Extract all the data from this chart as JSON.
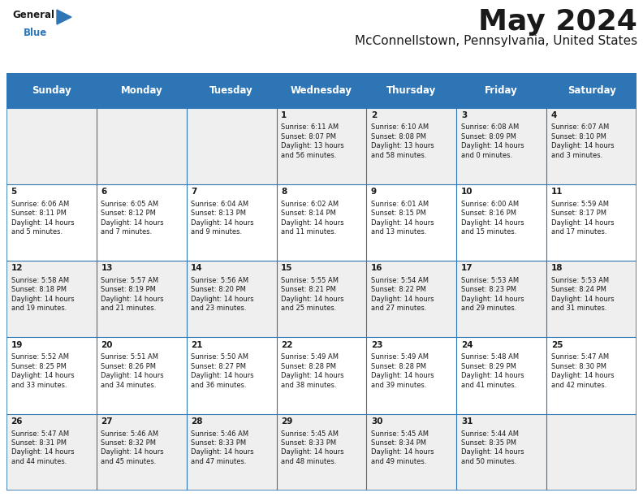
{
  "title": "May 2024",
  "subtitle": "McConnellstown, Pennsylvania, United States",
  "header_bg": "#2E75B6",
  "header_text_color": "#FFFFFF",
  "cell_bg_light": "#EFEFEF",
  "cell_bg_white": "#FFFFFF",
  "days_of_week": [
    "Sunday",
    "Monday",
    "Tuesday",
    "Wednesday",
    "Thursday",
    "Friday",
    "Saturday"
  ],
  "calendar": [
    [
      "",
      "",
      "",
      "1\nSunrise: 6:11 AM\nSunset: 8:07 PM\nDaylight: 13 hours\nand 56 minutes.",
      "2\nSunrise: 6:10 AM\nSunset: 8:08 PM\nDaylight: 13 hours\nand 58 minutes.",
      "3\nSunrise: 6:08 AM\nSunset: 8:09 PM\nDaylight: 14 hours\nand 0 minutes.",
      "4\nSunrise: 6:07 AM\nSunset: 8:10 PM\nDaylight: 14 hours\nand 3 minutes."
    ],
    [
      "5\nSunrise: 6:06 AM\nSunset: 8:11 PM\nDaylight: 14 hours\nand 5 minutes.",
      "6\nSunrise: 6:05 AM\nSunset: 8:12 PM\nDaylight: 14 hours\nand 7 minutes.",
      "7\nSunrise: 6:04 AM\nSunset: 8:13 PM\nDaylight: 14 hours\nand 9 minutes.",
      "8\nSunrise: 6:02 AM\nSunset: 8:14 PM\nDaylight: 14 hours\nand 11 minutes.",
      "9\nSunrise: 6:01 AM\nSunset: 8:15 PM\nDaylight: 14 hours\nand 13 minutes.",
      "10\nSunrise: 6:00 AM\nSunset: 8:16 PM\nDaylight: 14 hours\nand 15 minutes.",
      "11\nSunrise: 5:59 AM\nSunset: 8:17 PM\nDaylight: 14 hours\nand 17 minutes."
    ],
    [
      "12\nSunrise: 5:58 AM\nSunset: 8:18 PM\nDaylight: 14 hours\nand 19 minutes.",
      "13\nSunrise: 5:57 AM\nSunset: 8:19 PM\nDaylight: 14 hours\nand 21 minutes.",
      "14\nSunrise: 5:56 AM\nSunset: 8:20 PM\nDaylight: 14 hours\nand 23 minutes.",
      "15\nSunrise: 5:55 AM\nSunset: 8:21 PM\nDaylight: 14 hours\nand 25 minutes.",
      "16\nSunrise: 5:54 AM\nSunset: 8:22 PM\nDaylight: 14 hours\nand 27 minutes.",
      "17\nSunrise: 5:53 AM\nSunset: 8:23 PM\nDaylight: 14 hours\nand 29 minutes.",
      "18\nSunrise: 5:53 AM\nSunset: 8:24 PM\nDaylight: 14 hours\nand 31 minutes."
    ],
    [
      "19\nSunrise: 5:52 AM\nSunset: 8:25 PM\nDaylight: 14 hours\nand 33 minutes.",
      "20\nSunrise: 5:51 AM\nSunset: 8:26 PM\nDaylight: 14 hours\nand 34 minutes.",
      "21\nSunrise: 5:50 AM\nSunset: 8:27 PM\nDaylight: 14 hours\nand 36 minutes.",
      "22\nSunrise: 5:49 AM\nSunset: 8:28 PM\nDaylight: 14 hours\nand 38 minutes.",
      "23\nSunrise: 5:49 AM\nSunset: 8:28 PM\nDaylight: 14 hours\nand 39 minutes.",
      "24\nSunrise: 5:48 AM\nSunset: 8:29 PM\nDaylight: 14 hours\nand 41 minutes.",
      "25\nSunrise: 5:47 AM\nSunset: 8:30 PM\nDaylight: 14 hours\nand 42 minutes."
    ],
    [
      "26\nSunrise: 5:47 AM\nSunset: 8:31 PM\nDaylight: 14 hours\nand 44 minutes.",
      "27\nSunrise: 5:46 AM\nSunset: 8:32 PM\nDaylight: 14 hours\nand 45 minutes.",
      "28\nSunrise: 5:46 AM\nSunset: 8:33 PM\nDaylight: 14 hours\nand 47 minutes.",
      "29\nSunrise: 5:45 AM\nSunset: 8:33 PM\nDaylight: 14 hours\nand 48 minutes.",
      "30\nSunrise: 5:45 AM\nSunset: 8:34 PM\nDaylight: 14 hours\nand 49 minutes.",
      "31\nSunrise: 5:44 AM\nSunset: 8:35 PM\nDaylight: 14 hours\nand 50 minutes.",
      ""
    ]
  ],
  "logo_text_general": "General",
  "logo_text_blue": "Blue",
  "logo_color_general": "#1A1A1A",
  "logo_color_blue": "#2E75B6",
  "logo_triangle_color": "#2E75B6",
  "title_fontsize": 26,
  "subtitle_fontsize": 11,
  "header_fontsize": 8.5,
  "cell_day_fontsize": 7.5,
  "cell_text_fontsize": 6.0,
  "border_color": "#2E75B6",
  "alt_row_bg": "#EFEFEF"
}
